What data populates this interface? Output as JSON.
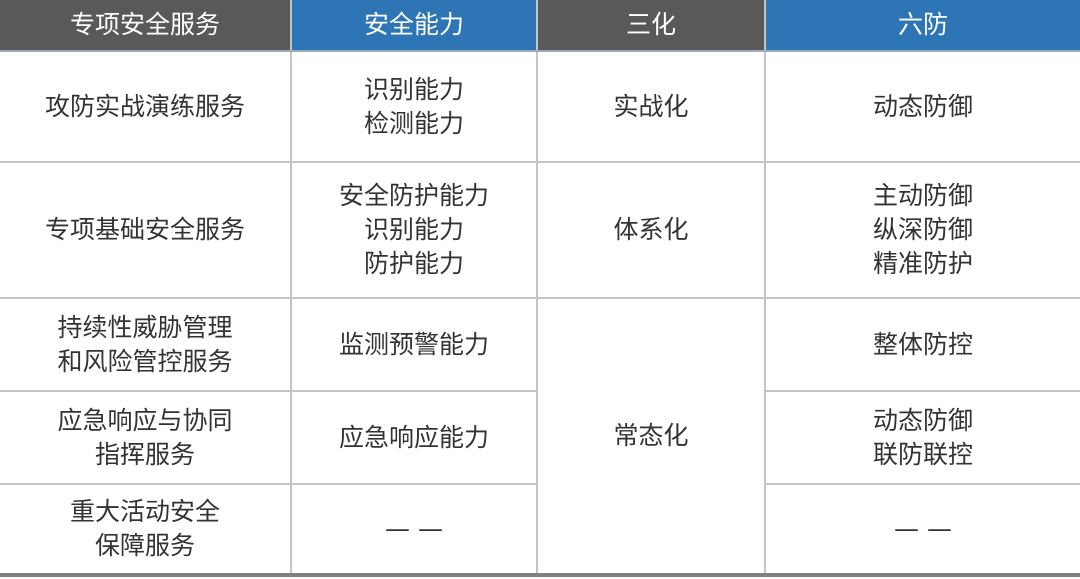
{
  "header": [
    "专项安全服务",
    "安全能力",
    "三化",
    "六防"
  ],
  "colors": {
    "header_gray": "#595959",
    "header_blue": "#2e75b6"
  },
  "rows": [
    {
      "service": [
        "攻防实战演练服务"
      ],
      "capability": [
        "识别能力",
        "检测能力"
      ],
      "sanhua": "实战化",
      "liufang": [
        "动态防御"
      ]
    },
    {
      "service": [
        "专项基础安全服务"
      ],
      "capability": [
        "安全防护能力",
        "识别能力",
        "防护能力"
      ],
      "sanhua": "体系化",
      "liufang": [
        "主动防御",
        "纵深防御",
        "精准防护"
      ]
    },
    {
      "service": [
        "持续性威胁管理",
        "和风险管控服务"
      ],
      "capability": [
        "监测预警能力"
      ],
      "sanhua": "常态化",
      "liufang": [
        "整体防控"
      ]
    },
    {
      "service": [
        "应急响应与协同",
        "指挥服务"
      ],
      "capability": [
        "应急响应能力"
      ],
      "liufang": [
        "动态防御",
        "联防联控"
      ]
    },
    {
      "service": [
        "重大活动安全",
        "保障服务"
      ],
      "capability": [
        "— —"
      ],
      "liufang": [
        "— —"
      ]
    }
  ]
}
